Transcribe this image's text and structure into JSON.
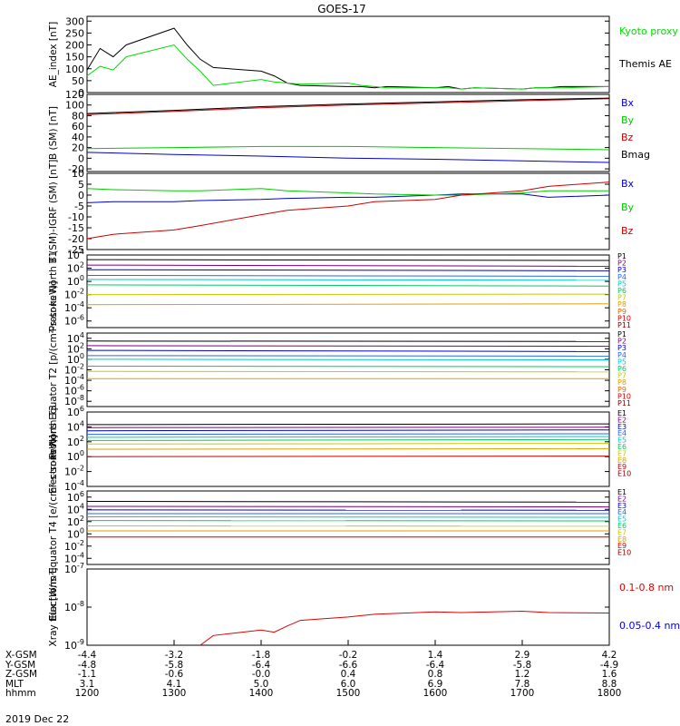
{
  "title": "GOES-17",
  "footer_date": "2019 Dec 22",
  "x_axis": {
    "ticks": [
      "1200",
      "1300",
      "1400",
      "1500",
      "1600",
      "1700",
      "1800"
    ],
    "coord_rows": [
      {
        "label": "X-GSM",
        "values": [
          "-4.4",
          "-3.2",
          "-1.8",
          "-0.2",
          "1.4",
          "2.9",
          "4.2"
        ]
      },
      {
        "label": "Y-GSM",
        "values": [
          "-4.8",
          "-5.8",
          "-6.4",
          "-6.6",
          "-6.4",
          "-5.8",
          "-4.9"
        ]
      },
      {
        "label": "Z-GSM",
        "values": [
          "-1.1",
          "-0.6",
          "-0.0",
          "0.4",
          "0.8",
          "1.2",
          "1.6"
        ]
      },
      {
        "label": "MLT",
        "values": [
          "3.1",
          "4.1",
          "5.0",
          "6.0",
          "6.9",
          "7.8",
          "8.8"
        ]
      },
      {
        "label": "hhmm",
        "values": [
          "1200",
          "1300",
          "1400",
          "1500",
          "1600",
          "1700",
          "1800"
        ]
      }
    ]
  },
  "chart_data": [
    {
      "type": "line",
      "ylabel": "AE_index [nT]",
      "ylim": [
        0,
        320
      ],
      "yticks": [
        "0",
        "50",
        "100",
        "150",
        "200",
        "250",
        "300"
      ],
      "x": [
        1200,
        1215,
        1230,
        1245,
        1300,
        1315,
        1330,
        1345,
        1400,
        1415,
        1430,
        1445,
        1500,
        1515,
        1530,
        1545,
        1600,
        1615,
        1630,
        1645,
        1700,
        1715,
        1730,
        1745,
        1800
      ],
      "series": [
        {
          "name": "Themis AE",
          "color": "#000000",
          "values": [
            95,
            185,
            150,
            200,
            270,
            200,
            140,
            105,
            90,
            70,
            40,
            30,
            25,
            25,
            20,
            25,
            20,
            25,
            15,
            20,
            15,
            20,
            20,
            25,
            25
          ]
        },
        {
          "name": "Kyoto proxy AE",
          "color": "#00dd00",
          "values": [
            70,
            110,
            95,
            150,
            200,
            140,
            90,
            30,
            55,
            45,
            40,
            35,
            40,
            30,
            25,
            20,
            20,
            20,
            15,
            20,
            15,
            20,
            20,
            20,
            25
          ]
        }
      ],
      "legend": [
        "Kyoto proxy AE",
        "Themis AE"
      ]
    },
    {
      "type": "line",
      "ylabel": "B (SM) [nT]",
      "ylim": [
        -25,
        120
      ],
      "yticks": [
        "-20",
        "0",
        "20",
        "40",
        "60",
        "80",
        "100",
        "120"
      ],
      "x": [
        1200,
        1300,
        1400,
        1500,
        1600,
        1700,
        1800
      ],
      "series": [
        {
          "name": "Bx",
          "color": "#0000cc",
          "values": [
            11,
            7,
            4,
            0,
            -2,
            -5,
            -8
          ]
        },
        {
          "name": "By",
          "color": "#00cc00",
          "values": [
            18,
            20,
            22,
            22,
            20,
            18,
            16
          ]
        },
        {
          "name": "Bz",
          "color": "#cc0000",
          "values": [
            82,
            88,
            95,
            100,
            104,
            108,
            112
          ]
        },
        {
          "name": "Bmag",
          "color": "#000000",
          "values": [
            84,
            90,
            97,
            102,
            106,
            110,
            113
          ]
        }
      ],
      "legend": [
        "Bx",
        "By",
        "Bz",
        "Bmag"
      ]
    },
    {
      "type": "line",
      "ylabel": "B (SM)-IGRF (SM) [nT]",
      "ylim": [
        -25,
        10
      ],
      "yticks": [
        "-25",
        "-20",
        "-15",
        "-10",
        "-5",
        "0",
        "5",
        "10"
      ],
      "x": [
        1200,
        1230,
        1300,
        1330,
        1400,
        1430,
        1500,
        1530,
        1600,
        1630,
        1700,
        1730,
        1800
      ],
      "series": [
        {
          "name": "Bx",
          "color": "#0000cc",
          "values": [
            -3.5,
            -3,
            -3,
            -2.5,
            -2,
            -1.5,
            -1,
            -1,
            0,
            0.5,
            0.5,
            -1,
            0
          ]
        },
        {
          "name": "By",
          "color": "#00cc00",
          "values": [
            3,
            2.5,
            2,
            2,
            3,
            2,
            1,
            0.5,
            0,
            0,
            1,
            2,
            2
          ]
        },
        {
          "name": "Bz",
          "color": "#cc0000",
          "values": [
            -20,
            -18,
            -16,
            -14,
            -9,
            -7,
            -5,
            -3,
            -2,
            0,
            2,
            4,
            6
          ]
        }
      ],
      "legend": [
        "Bx",
        "By",
        "Bz"
      ]
    },
    {
      "type": "line",
      "ylabel": "Protons North T1",
      "scale": "log",
      "ylim": [
        1e-07,
        10000.0
      ],
      "yticks": [
        "10^-6",
        "10^-4",
        "10^-2",
        "10^0",
        "10^2",
        "10^4"
      ],
      "legend": [
        "P1",
        "P2",
        "P3",
        "P4",
        "P5",
        "P6",
        "P7",
        "P8",
        "P9",
        "P10",
        "P11"
      ],
      "series": [
        {
          "name": "P1",
          "color": "#000000",
          "values": [
            2000,
            1500
          ]
        },
        {
          "name": "P2",
          "color": "#7a007a",
          "values": [
            300,
            200
          ]
        },
        {
          "name": "P3",
          "color": "#0000cc",
          "values": [
            60,
            40
          ]
        },
        {
          "name": "P4",
          "color": "#2266ff",
          "values": [
            8,
            6
          ]
        },
        {
          "name": "P5",
          "color": "#00c8c8",
          "values": [
            2,
            1.5
          ]
        },
        {
          "name": "P6",
          "color": "#00cc66",
          "values": [
            0.3,
            0.2
          ]
        },
        {
          "name": "P7",
          "color": "#c8c800",
          "values": [
            0.01,
            0.012
          ]
        },
        {
          "name": "P8",
          "color": "#e0a000",
          "values": [
            0.0003,
            0.0004
          ]
        }
      ]
    },
    {
      "type": "line",
      "ylabel": "Protons Equator T2 [p/(cm²-s-sr-keV)]",
      "scale": "log",
      "ylim": [
        1e-09,
        100000.0
      ],
      "yticks": [
        "10^-8",
        "10^-6",
        "10^-4",
        "10^-2",
        "10^0",
        "10^2",
        "10^4"
      ],
      "legend": [
        "P1",
        "P2",
        "P3",
        "P4",
        "P5",
        "P6",
        "P7",
        "P8",
        "P9",
        "P10",
        "P11"
      ],
      "series": [
        {
          "name": "P1",
          "color": "#000000",
          "values": [
            3000,
            2500
          ]
        },
        {
          "name": "P2",
          "color": "#7a007a",
          "values": [
            400,
            300
          ]
        },
        {
          "name": "P3",
          "color": "#0000cc",
          "values": [
            50,
            30
          ]
        },
        {
          "name": "P4",
          "color": "#2266ff",
          "values": [
            5,
            4
          ]
        },
        {
          "name": "P5",
          "color": "#00c8c8",
          "values": [
            1,
            0.8
          ]
        },
        {
          "name": "P6",
          "color": "#00cc66",
          "values": [
            0.05,
            0.04
          ]
        },
        {
          "name": "P7",
          "color": "#c8c800",
          "values": [
            0.005,
            0.004
          ]
        },
        {
          "name": "P8",
          "color": "#e0a000",
          "values": [
            0.0002,
            0.0002
          ]
        }
      ]
    },
    {
      "type": "line",
      "ylabel": "Electrons North T3",
      "scale": "log",
      "ylim": [
        0.0001,
        1000000.0
      ],
      "yticks": [
        "10^-4",
        "10^-2",
        "10^0",
        "10^2",
        "10^4",
        "10^6"
      ],
      "legend": [
        "E1",
        "E2",
        "E3",
        "E4",
        "E5",
        "E6",
        "E7",
        "E8",
        "E9",
        "E10"
      ],
      "series": [
        {
          "name": "E1",
          "color": "#000000",
          "values": [
            20000,
            25000
          ]
        },
        {
          "name": "E2",
          "color": "#7a007a",
          "values": [
            8000,
            9000
          ]
        },
        {
          "name": "E3",
          "color": "#0000cc",
          "values": [
            3000,
            4000
          ]
        },
        {
          "name": "E4",
          "color": "#2266ff",
          "values": [
            1000,
            1200
          ]
        },
        {
          "name": "E5",
          "color": "#00c8c8",
          "values": [
            400,
            500
          ]
        },
        {
          "name": "E6",
          "color": "#00cc66",
          "values": [
            150,
            200
          ]
        },
        {
          "name": "E7",
          "color": "#c8c800",
          "values": [
            50,
            60
          ]
        },
        {
          "name": "E8",
          "color": "#e0a000",
          "values": [
            10,
            12
          ]
        },
        {
          "name": "E9",
          "color": "#cc0000",
          "values": [
            1,
            1.2
          ]
        }
      ]
    },
    {
      "type": "line",
      "ylabel": "Electrons Equator T4 [e/(cm²-s-sr-keV)]",
      "scale": "log",
      "ylim": [
        1e-05,
        10000000.0
      ],
      "yticks": [
        "10^-4",
        "10^-2",
        "10^0",
        "10^2",
        "10^4",
        "10^6"
      ],
      "legend": [
        "E1",
        "E2",
        "E3",
        "E4",
        "E5",
        "E6",
        "E7",
        "E8",
        "E9",
        "E10"
      ],
      "series": [
        {
          "name": "E1",
          "color": "#000000",
          "values": [
            200000,
            150000
          ]
        },
        {
          "name": "E2",
          "color": "#7a007a",
          "values": [
            30000,
            25000
          ]
        },
        {
          "name": "E3",
          "color": "#0000cc",
          "values": [
            8000,
            7000
          ]
        },
        {
          "name": "E4",
          "color": "#2266ff",
          "values": [
            2000,
            2000
          ]
        },
        {
          "name": "E5",
          "color": "#00c8c8",
          "values": [
            600,
            500
          ]
        },
        {
          "name": "E6",
          "color": "#00cc66",
          "values": [
            150,
            130
          ]
        },
        {
          "name": "E7",
          "color": "#c8c800",
          "values": [
            20,
            18
          ]
        },
        {
          "name": "E8",
          "color": "#e0a000",
          "values": [
            3,
            3
          ]
        },
        {
          "name": "E9",
          "color": "#cc0000",
          "values": [
            0.3,
            0.3
          ]
        }
      ]
    },
    {
      "type": "line",
      "ylabel": "Xray flux [W/m²]",
      "scale": "log",
      "ylim": [
        1e-09,
        1e-07
      ],
      "yticks": [
        "10^-9",
        "10^-8",
        "10^-7"
      ],
      "x": [
        1200,
        1330,
        1345,
        1400,
        1415,
        1430,
        1445,
        1500,
        1530,
        1600,
        1630,
        1700,
        1730,
        1800
      ],
      "series": [
        {
          "name": "0.1-0.8 nm",
          "color": "#dd0000",
          "values": [
            null,
            1e-09,
            1.8e-09,
            2.5e-09,
            2.2e-09,
            3.2e-09,
            4.5e-09,
            5.5e-09,
            6.5e-09,
            7.5e-09,
            7.2e-09,
            7.8e-09,
            7.2e-09,
            7e-09
          ]
        },
        {
          "name": "0.05-0.4 nm",
          "color": "#0000dd",
          "values": [
            null,
            null,
            null,
            null,
            null,
            null,
            null,
            null,
            null,
            null,
            null,
            1e-09,
            null,
            null
          ]
        }
      ],
      "legend": [
        "0.1-0.8 nm",
        "0.05-0.4 nm"
      ]
    }
  ]
}
